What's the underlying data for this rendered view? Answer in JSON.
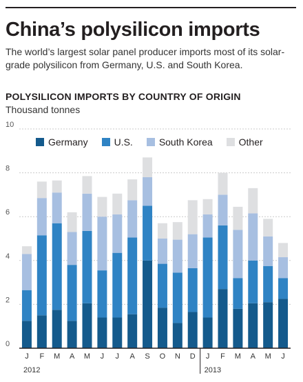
{
  "header": {
    "title": "China’s polysilicon imports",
    "subtitle": "The world’s largest solar panel producer imports most of its solar-grade polysilicon from Germany, U.S. and South Korea.",
    "chart_heading": "POLYSILICON IMPORTS BY COUNTRY OF ORIGIN",
    "units": "Thousand tonnes"
  },
  "colors": {
    "Germany": "#145a8c",
    "U.S.": "#2f83c4",
    "South Korea": "#a7bfe1",
    "Other": "#dedfe1"
  },
  "chart_data": {
    "type": "bar",
    "stacked": true,
    "title": "POLYSILICON IMPORTS BY COUNTRY OF ORIGIN",
    "ylabel": "Thousand tonnes",
    "ylim": [
      0,
      10
    ],
    "yticks": [
      "0",
      "2",
      "4",
      "6",
      "8",
      "10"
    ],
    "grid": true,
    "legend_position": "top",
    "categories": [
      "J",
      "F",
      "M",
      "A",
      "M",
      "J",
      "J",
      "A",
      "S",
      "O",
      "N",
      "D",
      "J",
      "F",
      "M",
      "A",
      "M",
      "J"
    ],
    "year_labels": [
      {
        "label": "2012",
        "start_index": 0
      },
      {
        "label": "2013",
        "start_index": 12
      }
    ],
    "series": [
      {
        "name": "Germany",
        "values": [
          1.25,
          1.5,
          1.75,
          1.25,
          2.05,
          1.4,
          1.4,
          1.55,
          4.0,
          1.85,
          1.15,
          1.65,
          1.4,
          2.7,
          1.8,
          2.05,
          2.1,
          2.25
        ]
      },
      {
        "name": "U.S.",
        "values": [
          1.4,
          3.65,
          3.95,
          2.55,
          3.3,
          2.15,
          2.95,
          3.5,
          2.5,
          2.0,
          2.3,
          2.0,
          3.65,
          2.9,
          1.4,
          1.95,
          1.65,
          0.95
        ]
      },
      {
        "name": "South Korea",
        "values": [
          1.65,
          1.7,
          1.4,
          1.5,
          1.7,
          2.45,
          1.75,
          1.7,
          1.3,
          1.15,
          1.5,
          1.55,
          1.05,
          1.4,
          2.2,
          2.15,
          1.35,
          0.95
        ]
      },
      {
        "name": "Other",
        "values": [
          0.35,
          0.75,
          0.55,
          0.9,
          0.8,
          0.9,
          0.95,
          0.95,
          0.9,
          0.7,
          0.8,
          1.55,
          0.7,
          1.0,
          1.05,
          1.15,
          0.8,
          0.65
        ]
      }
    ]
  }
}
